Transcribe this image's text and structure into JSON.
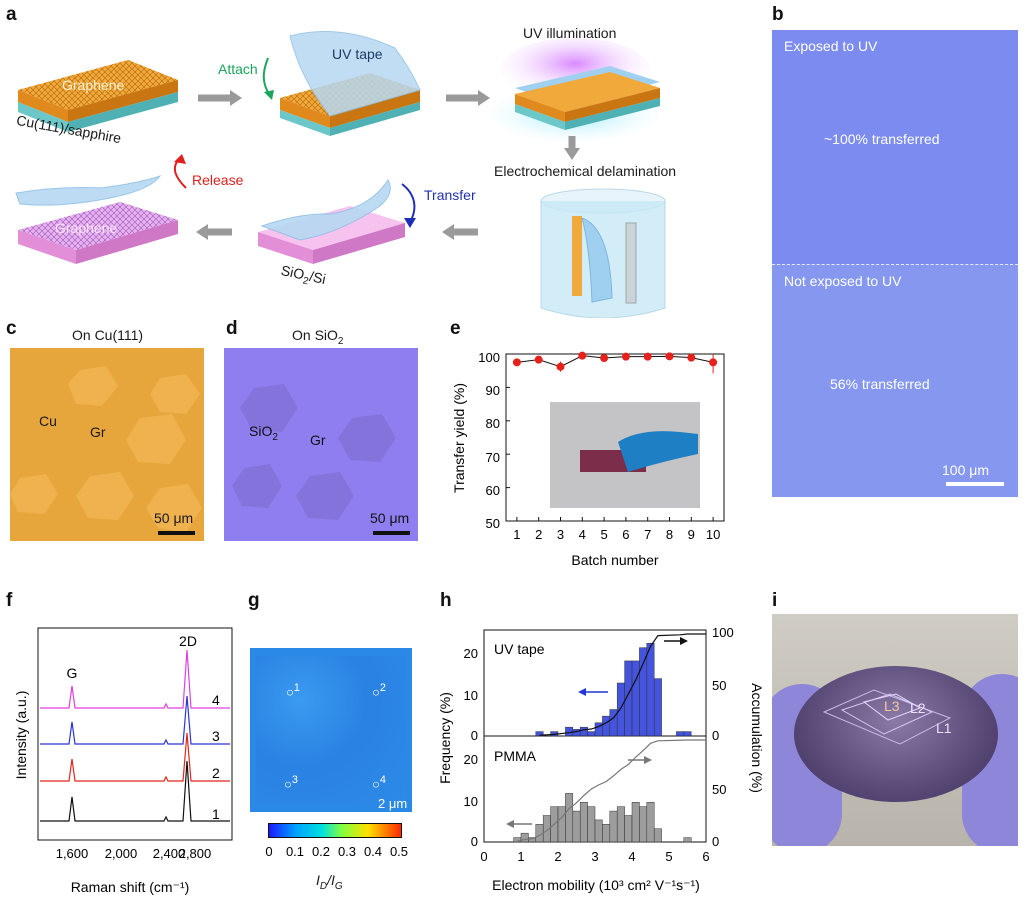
{
  "panels": {
    "a": "a",
    "b": "b",
    "c": "c",
    "d": "d",
    "e": "e",
    "f": "f",
    "g": "g",
    "h": "h",
    "i": "i"
  },
  "schematic": {
    "substrate": "Cu(111)/sapphire",
    "graphene": "Graphene",
    "attach": "Attach",
    "uv_tape": "UV tape",
    "uv_illumination": "UV illumination",
    "delamination": "Electrochemical delamination",
    "transfer": "Transfer",
    "release": "Release",
    "target_main": "SiO",
    "target_sub": "2",
    "target_tail": "/Si",
    "colors": {
      "attach": "#1aa55a",
      "release": "#e0201e",
      "transfer": "#1f2fb4"
    }
  },
  "panel_b": {
    "exposed": "Exposed to UV",
    "exposed_yield": "~100% transferred",
    "not_exposed": "Not exposed to  UV",
    "not_exposed_yield": "56% transferred",
    "scale": "100 μm"
  },
  "panel_c": {
    "title": "On Cu(111)",
    "cu": "Cu",
    "gr": "Gr",
    "scale": "50 μm"
  },
  "panel_d": {
    "title_main": "On SiO",
    "title_sub": "2",
    "sio_main": "SiO",
    "sio_sub": "2",
    "gr": "Gr",
    "scale": "50 μm"
  },
  "chart_data": [
    {
      "id": "e",
      "type": "scatter",
      "xlabel": "Batch number",
      "ylabel": "Transfer yield (%)",
      "x": [
        1,
        2,
        3,
        4,
        5,
        6,
        7,
        8,
        9,
        10
      ],
      "values": [
        97.5,
        98.3,
        96.2,
        99.5,
        98.8,
        99.2,
        99.2,
        99.3,
        98.9,
        97.5
      ],
      "errors": [
        0.8,
        0.6,
        1.5,
        0.2,
        0.8,
        0.6,
        0.4,
        0.3,
        0.5,
        3.3
      ],
      "xlim": [
        0.5,
        10.5
      ],
      "ylim": [
        50,
        100
      ],
      "yticks": [
        50,
        60,
        70,
        80,
        90,
        100
      ],
      "marker_color": "#e8201c"
    },
    {
      "id": "f",
      "type": "line",
      "xlabel": "Raman shift (cm⁻¹)",
      "ylabel": "Intensity (a.u.)",
      "xticks": [
        "1,600",
        "2,000",
        "2,400",
        "2,800"
      ],
      "peaks": [
        "G",
        "2D"
      ],
      "series": [
        {
          "name": "4",
          "color": "#e040e0"
        },
        {
          "name": "3",
          "color": "#2d34d6"
        },
        {
          "name": "2",
          "color": "#e0261f"
        },
        {
          "name": "1",
          "color": "#111111"
        }
      ]
    },
    {
      "id": "g",
      "type": "heatmap",
      "colorbar_label_main": "I",
      "colorbar_label_sub1": "D",
      "colorbar_label_mid": "/I",
      "colorbar_label_sub2": "G",
      "colorbar_ticks": [
        "0",
        "0.1",
        "0.2",
        "0.3",
        "0.4",
        "0.5"
      ],
      "points": [
        "1",
        "2",
        "3",
        "4"
      ],
      "scale": "2 μm"
    },
    {
      "id": "h",
      "type": "bar",
      "xlabel": "Electron mobility (10³ cm² V⁻¹s⁻¹)",
      "ylabel_left": "Frequency (%)",
      "ylabel_right": "Accumulation (%)",
      "xticks": [
        "0",
        "1",
        "2",
        "3",
        "4",
        "5",
        "6"
      ],
      "series": [
        {
          "name": "UV tape",
          "bin_centers": [
            1.5,
            1.9,
            2.3,
            2.5,
            2.7,
            2.9,
            3.1,
            3.3,
            3.5,
            3.7,
            3.9,
            4.1,
            4.3,
            4.5,
            4.7,
            5.3,
            5.5
          ],
          "values": [
            1,
            1,
            2,
            1.5,
            2,
            1,
            3,
            4.5,
            6,
            12,
            17,
            17,
            20,
            21,
            13,
            1,
            1
          ],
          "yticks": [
            0,
            10,
            20
          ],
          "right_ticks": [
            0,
            50,
            100
          ],
          "color": "#2436d6"
        },
        {
          "name": "PMMA",
          "bin_centers": [
            0.9,
            1.1,
            1.3,
            1.5,
            1.7,
            1.9,
            2.1,
            2.3,
            2.5,
            2.7,
            2.9,
            3.1,
            3.3,
            3.5,
            3.7,
            3.9,
            4.1,
            4.3,
            4.5,
            4.7,
            5.5
          ],
          "values": [
            1,
            2,
            1,
            4,
            6,
            8,
            8,
            11,
            7,
            9,
            8,
            5,
            4,
            7,
            8,
            6,
            9,
            8,
            9,
            3,
            1
          ],
          "yticks": [
            0,
            10,
            20
          ],
          "right_ticks": [
            0,
            50
          ],
          "color": "#8c8c8c"
        }
      ]
    }
  ],
  "panel_i": {
    "l1": "L1",
    "l2": "L2",
    "l3": "L3"
  }
}
